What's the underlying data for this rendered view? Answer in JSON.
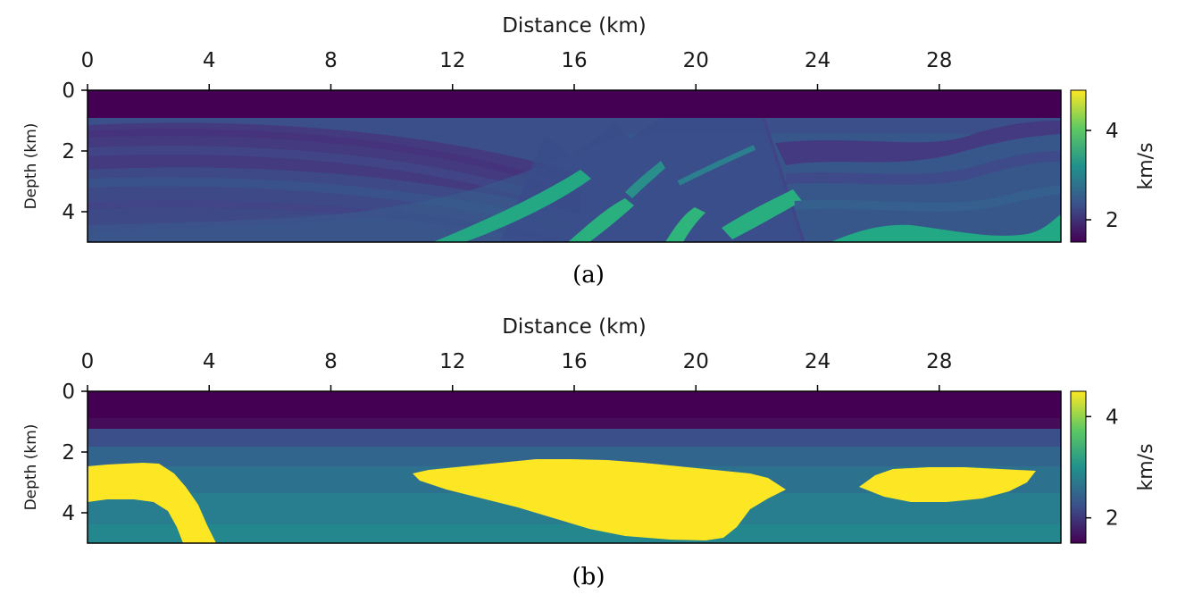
{
  "chart_data": [
    {
      "type": "heatmap",
      "panel": "a",
      "caption": "(a)",
      "title": "",
      "xlabel": "Distance (km)",
      "ylabel": "Depth (km)",
      "xlim": [
        0,
        32
      ],
      "ylim": [
        0,
        5
      ],
      "x_ticks": [
        0,
        4,
        8,
        12,
        16,
        20,
        24,
        28
      ],
      "y_ticks": [
        0,
        2,
        4
      ],
      "x_axis_position": "top",
      "y_inverted": true,
      "colormap": "viridis",
      "colorbar": {
        "label": "km/s",
        "range": [
          1.5,
          4.9
        ],
        "ticks": [
          2,
          4
        ]
      },
      "description_values": {
        "water_layer": {
          "depth_range": [
            0,
            0.9
          ],
          "velocity": 1.5
        },
        "sediment_layers": {
          "velocity_range": [
            1.8,
            2.6
          ]
        },
        "high_velocity_bands": {
          "velocity_range": [
            3.2,
            3.6
          ]
        }
      }
    },
    {
      "type": "heatmap",
      "panel": "b",
      "caption": "(b)",
      "title": "",
      "xlabel": "Distance (km)",
      "ylabel": "Depth (km)",
      "xlim": [
        0,
        32
      ],
      "ylim": [
        0,
        5
      ],
      "x_ticks": [
        0,
        4,
        8,
        12,
        16,
        20,
        24,
        28
      ],
      "y_ticks": [
        0,
        2,
        4
      ],
      "x_axis_position": "top",
      "y_inverted": true,
      "colormap": "viridis",
      "colorbar": {
        "label": "km/s",
        "range": [
          1.5,
          4.5
        ],
        "ticks": [
          2,
          4
        ]
      },
      "description_values": {
        "water_layer": {
          "depth_range": [
            0,
            1.2
          ],
          "velocity": 1.5
        },
        "salt_bodies": {
          "velocity": 4.5,
          "count": 3
        }
      }
    }
  ],
  "colors": {
    "viridis_dark": "#440154",
    "viridis_blue": "#3b528b",
    "viridis_teal": "#21918c",
    "viridis_green": "#5ec962",
    "viridis_yellow": "#fde725"
  }
}
